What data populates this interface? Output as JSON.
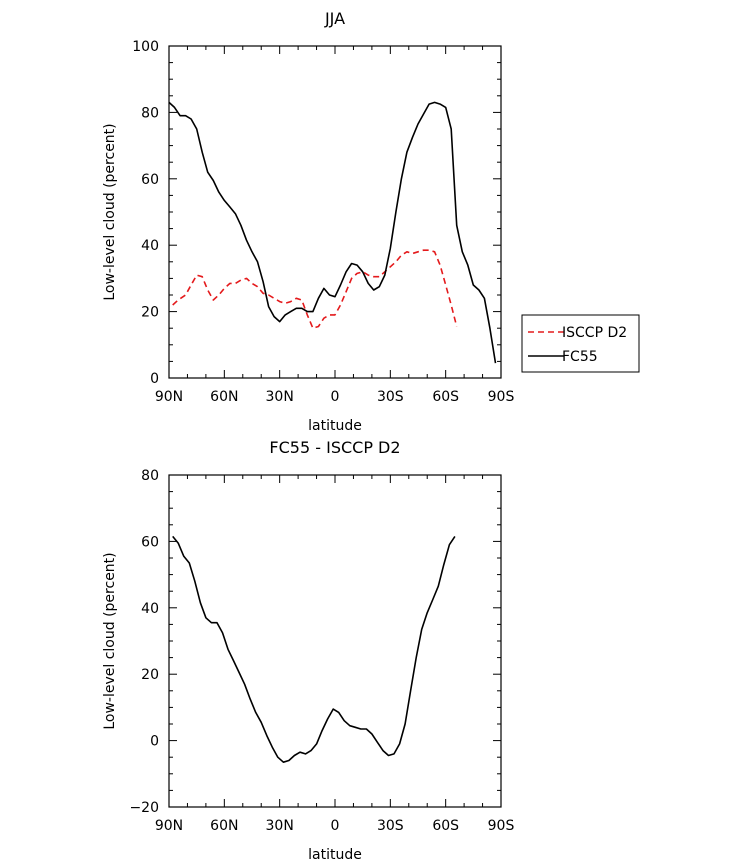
{
  "chart_data": [
    {
      "type": "line",
      "title": "JJA",
      "xlabel": "latitude",
      "ylabel": "Low-level cloud (percent)",
      "x_axis": "latitude, 90 (N) to -90 (S)",
      "xlim": [
        90,
        -90
      ],
      "ylim": [
        0,
        100
      ],
      "xticks": [
        90,
        60,
        30,
        0,
        -30,
        -60,
        -90
      ],
      "xtick_labels": [
        "90N",
        "60N",
        "30N",
        "0",
        "30S",
        "60S",
        "90S"
      ],
      "yticks": [
        0,
        20,
        40,
        60,
        80,
        100
      ],
      "ytick_labels": [
        "0",
        "20",
        "40",
        "60",
        "80",
        "100"
      ],
      "legend": {
        "position": "right",
        "entries": [
          {
            "label": "ISCCP D2",
            "color": "#e41a1c",
            "dash": "dashed"
          },
          {
            "label": "FC55",
            "color": "#000000",
            "dash": "solid"
          }
        ]
      },
      "series": [
        {
          "name": "ISCCP D2",
          "color": "#e41a1c",
          "dash": "dashed",
          "x": [
            88,
            85,
            81,
            78,
            75,
            72,
            69,
            66,
            63,
            60,
            57,
            54,
            51,
            48,
            45,
            42,
            39,
            36,
            33,
            30,
            27,
            24,
            21,
            18,
            15,
            12,
            9,
            6,
            3,
            0,
            -3,
            -6,
            -9,
            -12,
            -15,
            -18,
            -21,
            -24,
            -27,
            -30,
            -33,
            -36,
            -39,
            -42,
            -45,
            -48,
            -51,
            -54,
            -57,
            -60,
            -63,
            -66
          ],
          "y": [
            22,
            23.5,
            25,
            28,
            31,
            30.5,
            26.5,
            23.5,
            25,
            27,
            28.5,
            28.5,
            29.5,
            30,
            28.5,
            27.5,
            25.5,
            25,
            24,
            23,
            22.5,
            23,
            24,
            23.5,
            19,
            15,
            15.5,
            18,
            19,
            19,
            22,
            26,
            30,
            31.5,
            32,
            31,
            30.5,
            30.5,
            32,
            33.5,
            35,
            37,
            38,
            37.5,
            38,
            38.5,
            38.5,
            38,
            34,
            28,
            22,
            15.5
          ]
        },
        {
          "name": "FC55",
          "color": "#000000",
          "dash": "solid",
          "x": [
            90,
            87,
            84,
            81,
            78,
            75,
            72,
            69,
            66,
            63,
            60,
            57,
            54,
            51,
            48,
            45,
            42,
            39,
            36,
            33,
            30,
            27,
            24,
            21,
            18,
            15,
            12,
            9,
            6,
            3,
            0,
            -3,
            -6,
            -9,
            -12,
            -15,
            -18,
            -21,
            -24,
            -27,
            -30,
            -33,
            -36,
            -39,
            -42,
            -45,
            -48,
            -51,
            -54,
            -57,
            -60,
            -63,
            -66,
            -69,
            -72,
            -75,
            -78,
            -81,
            -84,
            -87
          ],
          "y": [
            83,
            81.5,
            79,
            79,
            78,
            75,
            68,
            62,
            59.5,
            56,
            53.5,
            51.5,
            49.5,
            46,
            41.5,
            38,
            35,
            29,
            21.5,
            18.5,
            17,
            19,
            20,
            21,
            21,
            20,
            20,
            24,
            27,
            25,
            24.5,
            28,
            32,
            34.5,
            34,
            32,
            28.5,
            26.5,
            27.5,
            31,
            39,
            50,
            60,
            68,
            72.5,
            76.5,
            79.5,
            82.5,
            83,
            82.5,
            81.5,
            75,
            46,
            38,
            34,
            28,
            26.5,
            24,
            15,
            4.5
          ]
        }
      ]
    },
    {
      "type": "line",
      "title": "FC55 - ISCCP D2",
      "xlabel": "latitude",
      "ylabel": "Low-level cloud (percent)",
      "x_axis": "latitude, 90 (N) to -90 (S)",
      "xlim": [
        90,
        -90
      ],
      "ylim": [
        -20,
        80
      ],
      "xticks": [
        90,
        60,
        30,
        0,
        -30,
        -60,
        -90
      ],
      "xtick_labels": [
        "90N",
        "60N",
        "30N",
        "0",
        "30S",
        "60S",
        "90S"
      ],
      "yticks": [
        -20,
        0,
        20,
        40,
        60,
        80
      ],
      "ytick_labels": [
        "−20",
        "0",
        "20",
        "40",
        "60",
        "80"
      ],
      "series": [
        {
          "color": "#000000",
          "dash": "solid",
          "x": [
            88,
            85,
            82,
            79,
            76,
            73,
            70,
            67,
            64,
            61,
            58,
            55,
            52,
            49,
            46,
            43,
            40,
            37,
            34,
            31,
            28,
            25,
            22,
            19,
            16,
            13,
            10,
            7,
            4,
            1,
            -2,
            -5,
            -8,
            -11,
            -14,
            -17,
            -20,
            -23,
            -26,
            -29,
            -32,
            -35,
            -38,
            -41,
            -44,
            -47,
            -50,
            -53,
            -56,
            -59,
            -62,
            -65
          ],
          "y": [
            61.5,
            59.5,
            55.5,
            53.5,
            48,
            41.5,
            37,
            35.5,
            35.5,
            32.5,
            27.5,
            24,
            20.5,
            17,
            12.5,
            8.5,
            5.5,
            1.5,
            -2,
            -5,
            -6.5,
            -6,
            -4.5,
            -3.5,
            -4,
            -3,
            -1,
            3,
            6.5,
            9.5,
            8.5,
            6,
            4.5,
            4,
            3.5,
            3.5,
            2,
            -0.5,
            -3,
            -4.5,
            -4,
            -1,
            5,
            15,
            25,
            33.5,
            38.5,
            42.5,
            46.5,
            53,
            59,
            61.5
          ]
        }
      ]
    }
  ]
}
